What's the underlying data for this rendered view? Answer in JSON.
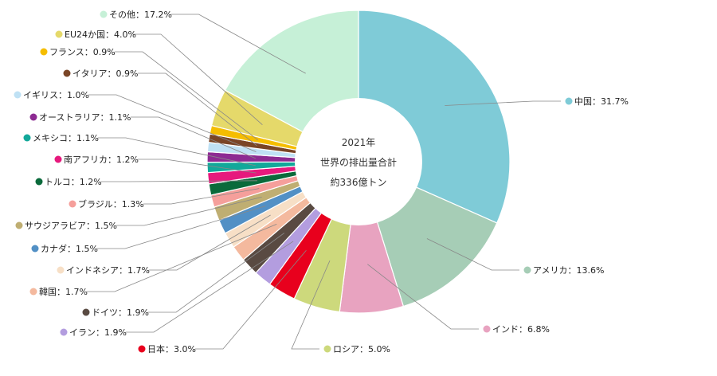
{
  "chart_data": {
    "type": "pie",
    "center_text": [
      "2021年",
      "世界の排出量合計",
      "約336億トン"
    ],
    "slices": [
      {
        "label": "中国",
        "value": 31.7,
        "display": "中国：31.7%",
        "color": "#7fcbd7"
      },
      {
        "label": "アメリカ",
        "value": 13.6,
        "display": "アメリカ：13.6%",
        "color": "#a6cdb6"
      },
      {
        "label": "インド",
        "value": 6.8,
        "display": "インド：6.8%",
        "color": "#e8a3c0"
      },
      {
        "label": "ロシア",
        "value": 5.0,
        "display": "ロシア：5.0%",
        "color": "#cdd97c"
      },
      {
        "label": "日本",
        "value": 3.0,
        "display": "日本：3.0%",
        "color": "#e8001d"
      },
      {
        "label": "イラン",
        "value": 1.9,
        "display": "イラン：1.9%",
        "color": "#b39ddf"
      },
      {
        "label": "ドイツ",
        "value": 1.9,
        "display": "ドイツ：1.9%",
        "color": "#594a42"
      },
      {
        "label": "韓国",
        "value": 1.7,
        "display": "韓国：1.7%",
        "color": "#f4b99e"
      },
      {
        "label": "インドネシア",
        "value": 1.7,
        "display": "インドネシア：1.7%",
        "color": "#f7dfc6"
      },
      {
        "label": "カナダ",
        "value": 1.5,
        "display": "カナダ：1.5%",
        "color": "#5290c5"
      },
      {
        "label": "サウジアラビア",
        "value": 1.5,
        "display": "サウジアラビア：1.5%",
        "color": "#bfae72"
      },
      {
        "label": "ブラジル",
        "value": 1.3,
        "display": "ブラジル：1.3%",
        "color": "#f59f9b"
      },
      {
        "label": "トルコ",
        "value": 1.2,
        "display": "トルコ：1.2%",
        "color": "#0a6a3b"
      },
      {
        "label": "南アフリカ",
        "value": 1.2,
        "display": "南アフリカ：1.2%",
        "color": "#e6197d"
      },
      {
        "label": "メキシコ",
        "value": 1.1,
        "display": "メキシコ：1.1%",
        "color": "#12a89a"
      },
      {
        "label": "オーストラリア",
        "value": 1.1,
        "display": "オーストラリア：1.1%",
        "color": "#8d2b92"
      },
      {
        "label": "イギリス",
        "value": 1.0,
        "display": "イギリス：1.0%",
        "color": "#bfe1f4"
      },
      {
        "label": "イタリア",
        "value": 0.9,
        "display": "イタリア：0.9%",
        "color": "#7a4526"
      },
      {
        "label": "フランス",
        "value": 0.9,
        "display": "フランス：0.9%",
        "color": "#f5bd00"
      },
      {
        "label": "EU24か国",
        "value": 4.0,
        "display": "EU24か国：4.0%",
        "color": "#e5d96a"
      },
      {
        "label": "その他",
        "value": 17.2,
        "display": "その他：17.2%",
        "color": "#c6f0d7"
      }
    ]
  }
}
